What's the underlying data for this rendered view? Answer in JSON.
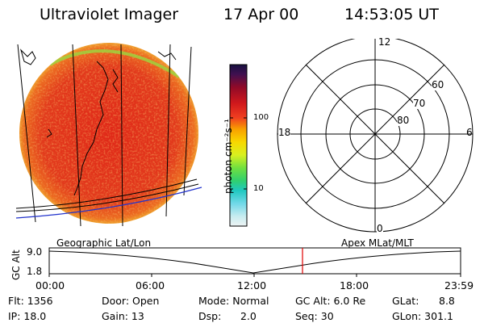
{
  "header": {
    "instrument": "Ultraviolet Imager",
    "date": "17 Apr 00",
    "time": "14:53:05 UT"
  },
  "colorbar": {
    "unit_label": "photon cm⁻²s⁻¹",
    "ticks": [
      "100",
      "10"
    ]
  },
  "polar": {
    "mlt_labels": {
      "top": "12",
      "right": "6",
      "bottom": "0",
      "left": "18"
    },
    "lat_labels": [
      "60",
      "70",
      "80"
    ]
  },
  "projection_labels": {
    "left": "Geographic Lat/Lon",
    "right": "Apex MLat/MLT"
  },
  "altitude_plot": {
    "ylabel": "GC Alt",
    "yticks": [
      "9.0",
      "1.8"
    ],
    "xticks": [
      "00:00",
      "06:00",
      "12:00",
      "18:00",
      "23:59"
    ],
    "current_time_marker": "14:53",
    "marker_color": "#e00000"
  },
  "status": {
    "flt": "Flt: 1356",
    "ip": "IP: 18.0",
    "door": "Door: Open",
    "gain": "Gain: 13",
    "mode": "Mode: Normal",
    "dsp_label": "Dsp:",
    "dsp_value": "2.0",
    "gc_alt": "GC Alt: 6.0 Re",
    "seq": "Seq: 30",
    "glat_label": "GLat:",
    "glat_value": "8.8",
    "glon": "GLon: 301.1"
  }
}
